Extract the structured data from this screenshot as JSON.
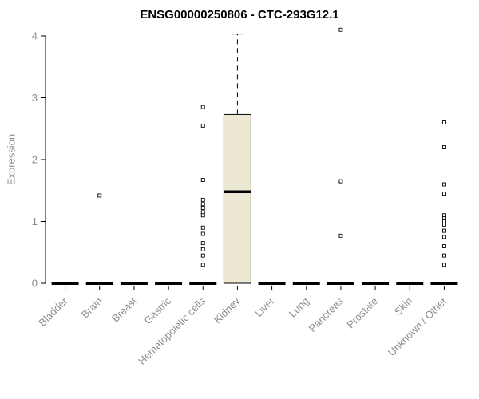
{
  "title": "ENSG00000250806 - CTC-293G12.1",
  "ylabel": "Expression",
  "chart_data": {
    "type": "boxplot",
    "title": "ENSG00000250806 - CTC-293G12.1",
    "xlabel": "",
    "ylabel": "Expression",
    "ylim": [
      0,
      4
    ],
    "yticks": [
      0,
      1,
      2,
      3,
      4
    ],
    "grid": false,
    "legend": false,
    "categories": [
      "Bladder",
      "Brain",
      "Breast",
      "Gastric",
      "Hematopoietic cells",
      "Kidney",
      "Liver",
      "Lung",
      "Pancreas",
      "Prostate",
      "Skin",
      "Unknown / Other"
    ],
    "series": [
      {
        "category": "Bladder",
        "q1": 0,
        "median": 0,
        "q3": 0,
        "whisker_low": 0,
        "whisker_high": 0,
        "outliers": []
      },
      {
        "category": "Brain",
        "q1": 0,
        "median": 0,
        "q3": 0,
        "whisker_low": 0,
        "whisker_high": 0,
        "outliers": [
          1.42
        ]
      },
      {
        "category": "Breast",
        "q1": 0,
        "median": 0,
        "q3": 0,
        "whisker_low": 0,
        "whisker_high": 0,
        "outliers": []
      },
      {
        "category": "Gastric",
        "q1": 0,
        "median": 0,
        "q3": 0,
        "whisker_low": 0,
        "whisker_high": 0,
        "outliers": []
      },
      {
        "category": "Hematopoietic cells",
        "q1": 0,
        "median": 0,
        "q3": 0,
        "whisker_low": 0,
        "whisker_high": 0,
        "outliers": [
          2.85,
          2.55,
          1.67,
          1.35,
          1.28,
          1.22,
          1.15,
          1.1,
          0.9,
          0.8,
          0.65,
          0.55,
          0.45,
          0.3
        ]
      },
      {
        "category": "Kidney",
        "q1": 0,
        "median": 1.48,
        "q3": 2.73,
        "whisker_low": 0,
        "whisker_high": 4.03,
        "outliers": []
      },
      {
        "category": "Liver",
        "q1": 0,
        "median": 0,
        "q3": 0,
        "whisker_low": 0,
        "whisker_high": 0,
        "outliers": []
      },
      {
        "category": "Lung",
        "q1": 0,
        "median": 0,
        "q3": 0,
        "whisker_low": 0,
        "whisker_high": 0,
        "outliers": []
      },
      {
        "category": "Pancreas",
        "q1": 0,
        "median": 0,
        "q3": 0,
        "whisker_low": 0,
        "whisker_high": 0,
        "outliers": [
          4.1,
          1.65,
          0.77
        ]
      },
      {
        "category": "Prostate",
        "q1": 0,
        "median": 0,
        "q3": 0,
        "whisker_low": 0,
        "whisker_high": 0,
        "outliers": []
      },
      {
        "category": "Skin",
        "q1": 0,
        "median": 0,
        "q3": 0,
        "whisker_low": 0,
        "whisker_high": 0,
        "outliers": []
      },
      {
        "category": "Unknown / Other",
        "q1": 0,
        "median": 0,
        "q3": 0,
        "whisker_low": 0,
        "whisker_high": 0,
        "outliers": [
          2.6,
          2.2,
          1.6,
          1.45,
          1.1,
          1.05,
          1.0,
          0.95,
          0.85,
          0.75,
          0.6,
          0.45,
          0.3
        ]
      }
    ],
    "colors": {
      "box_fill": "#ede8d4",
      "box_stroke": "#000000",
      "median": "#000000",
      "axis_line": "#000000",
      "axis_text": "#8c8c8c",
      "title": "#000000",
      "outlier_fill": "#ffffff",
      "outlier_stroke": "#000000"
    }
  }
}
